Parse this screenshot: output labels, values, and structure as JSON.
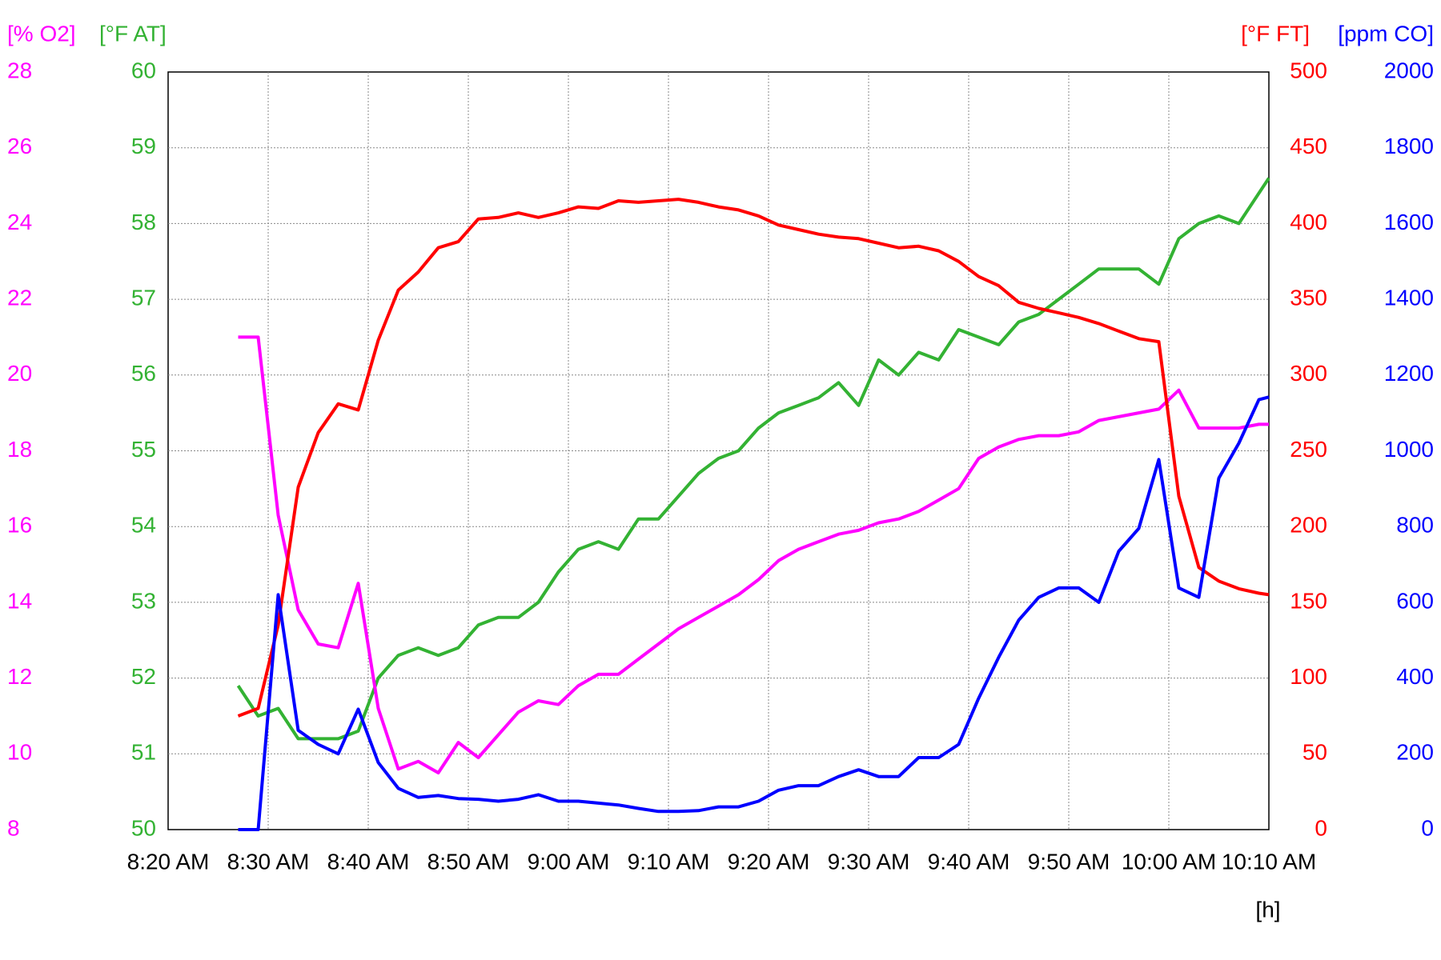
{
  "chart_data": {
    "type": "line",
    "xlim": [
      "8:20 AM",
      "10:10 AM"
    ],
    "xticks": [
      "8:20 AM",
      "8:30 AM",
      "8:40 AM",
      "8:50 AM",
      "9:00 AM",
      "9:10 AM",
      "9:20 AM",
      "9:30 AM",
      "9:40 AM",
      "9:50 AM",
      "10:00 AM",
      "10:10 AM"
    ],
    "x_label": "[h]",
    "grid": true,
    "axes": {
      "y": {
        "label": "[% O2]",
        "color": "#ff00ff",
        "ylim": [
          8,
          28
        ],
        "yticks": [
          8,
          10,
          12,
          14,
          16,
          18,
          20,
          22,
          24,
          26,
          28
        ]
      },
      "y2": {
        "label": "[°F AT]",
        "color": "#33b233",
        "ylim": [
          50,
          60
        ],
        "yticks": [
          50,
          51,
          52,
          53,
          54,
          55,
          56,
          57,
          58,
          59,
          60
        ]
      },
      "y3": {
        "label": "[°F FT]",
        "color": "#ff0000",
        "ylim": [
          0,
          500
        ],
        "yticks": [
          0,
          50,
          100,
          150,
          200,
          250,
          300,
          350,
          400,
          450,
          500
        ]
      },
      "y4": {
        "label": "[ppm CO]",
        "color": "#0000ff",
        "ylim": [
          0,
          2000
        ],
        "yticks": [
          0,
          200,
          400,
          600,
          800,
          1000,
          1200,
          1400,
          1600,
          1800,
          2000
        ]
      }
    },
    "x": [
      "8:27 AM",
      "8:29 AM",
      "8:31 AM",
      "8:33 AM",
      "8:35 AM",
      "8:37 AM",
      "8:39 AM",
      "8:41 AM",
      "8:43 AM",
      "8:45 AM",
      "8:47 AM",
      "8:49 AM",
      "8:51 AM",
      "8:53 AM",
      "8:55 AM",
      "8:57 AM",
      "8:59 AM",
      "9:01 AM",
      "9:03 AM",
      "9:05 AM",
      "9:07 AM",
      "9:09 AM",
      "9:11 AM",
      "9:13 AM",
      "9:15 AM",
      "9:17 AM",
      "9:19 AM",
      "9:21 AM",
      "9:23 AM",
      "9:25 AM",
      "9:27 AM",
      "9:29 AM",
      "9:31 AM",
      "9:33 AM",
      "9:35 AM",
      "9:37 AM",
      "9:39 AM",
      "9:41 AM",
      "9:43 AM",
      "9:45 AM",
      "9:47 AM",
      "9:49 AM",
      "9:51 AM",
      "9:53 AM",
      "9:55 AM",
      "9:57 AM",
      "9:59 AM",
      "10:01 AM",
      "10:03 AM",
      "10:05 AM",
      "10:07 AM",
      "10:09 AM",
      "10:10 AM"
    ],
    "series": [
      {
        "axis": "y2",
        "color": "#33b233",
        "values": [
          51.9,
          51.5,
          51.6,
          51.2,
          51.2,
          51.2,
          51.3,
          52.0,
          52.3,
          52.4,
          52.3,
          52.4,
          52.7,
          52.8,
          52.8,
          53.0,
          53.4,
          53.7,
          53.8,
          53.7,
          54.1,
          54.1,
          54.4,
          54.7,
          54.9,
          55.0,
          55.3,
          55.5,
          55.6,
          55.7,
          55.9,
          55.6,
          56.2,
          56.0,
          56.3,
          56.2,
          56.6,
          56.5,
          56.4,
          56.7,
          56.8,
          57.0,
          57.2,
          57.4,
          57.4,
          57.4,
          57.2,
          57.8,
          58.0,
          58.1,
          58.0,
          58.4,
          58.6
        ]
      },
      {
        "axis": "y",
        "color": "#ff00ff",
        "values": [
          21,
          21,
          16.3,
          13.8,
          12.9,
          12.8,
          14.5,
          11.2,
          9.6,
          9.8,
          9.5,
          10.3,
          9.9,
          10.5,
          11.1,
          11.4,
          11.3,
          11.8,
          12.1,
          12.1,
          12.5,
          12.9,
          13.3,
          13.6,
          13.9,
          14.2,
          14.6,
          15.1,
          15.4,
          15.6,
          15.8,
          15.9,
          16.1,
          16.2,
          16.4,
          16.7,
          17.0,
          17.8,
          18.1,
          18.3,
          18.4,
          18.4,
          18.5,
          18.8,
          18.9,
          19.0,
          19.1,
          19.6,
          18.6,
          18.6,
          18.6,
          18.7,
          18.7
        ]
      },
      {
        "axis": "y3",
        "color": "#ff0000",
        "values": [
          75,
          80,
          135,
          226,
          262,
          281,
          277,
          323,
          356,
          368,
          384,
          388,
          403,
          404,
          407,
          404,
          407,
          411,
          410,
          415,
          414,
          415,
          416,
          414,
          411,
          409,
          405,
          399,
          396,
          393,
          391,
          390,
          387,
          384,
          385,
          382,
          375,
          365,
          359,
          348,
          344,
          341,
          338,
          334,
          329,
          324,
          322,
          220,
          173,
          164,
          159,
          156,
          155
        ]
      },
      {
        "axis": "y4",
        "color": "#0000ff",
        "values": [
          0,
          0,
          620,
          262,
          225,
          200,
          318,
          177,
          109,
          85,
          90,
          82,
          80,
          75,
          80,
          92,
          75,
          75,
          70,
          65,
          56,
          48,
          48,
          50,
          60,
          60,
          75,
          104,
          116,
          116,
          140,
          158,
          140,
          140,
          190,
          190,
          225,
          347,
          455,
          553,
          613,
          638,
          638,
          600,
          735,
          795,
          977,
          638,
          613,
          928,
          1020,
          1135,
          1142
        ]
      }
    ]
  }
}
